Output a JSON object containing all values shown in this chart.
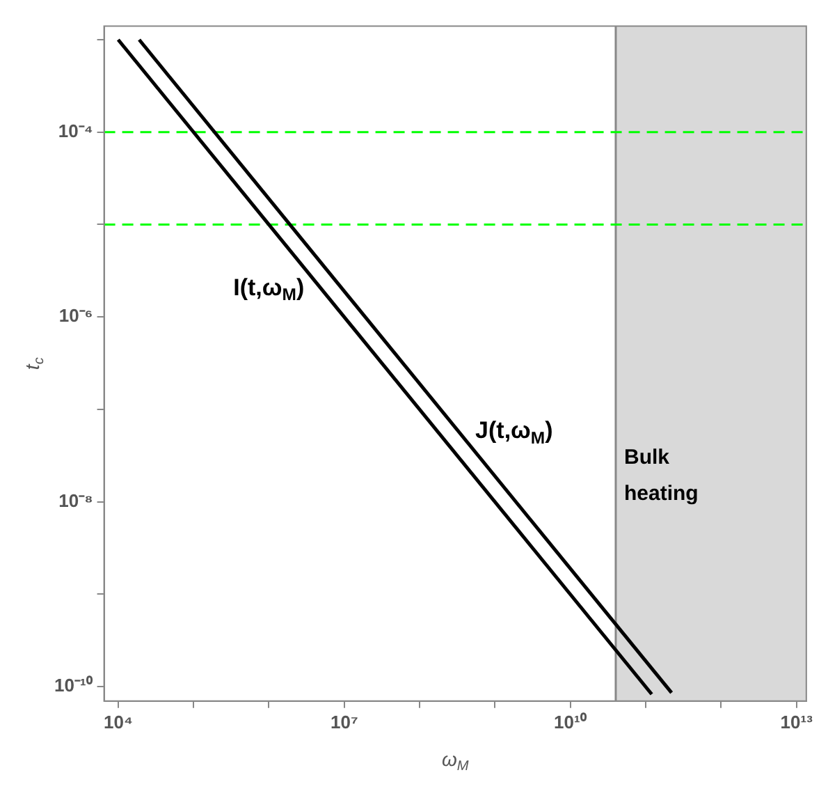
{
  "chart_data": {
    "type": "line",
    "xlabel": "ω$_{M}$",
    "ylabel": "t$_{c}$",
    "log": "xy",
    "xlim": [
      6500.0,
      13500000000000.0
    ],
    "ylim": [
      7e-11,
      0.0014
    ],
    "xticks": [
      {
        "value": 10000.0,
        "label": "10⁴"
      },
      {
        "value": 100000.0,
        "label": null
      },
      {
        "value": 1000000.0,
        "label": null
      },
      {
        "value": 10000000.0,
        "label": "10⁷"
      },
      {
        "value": 100000000.0,
        "label": null
      },
      {
        "value": 1000000000.0,
        "label": null
      },
      {
        "value": 10000000000.0,
        "label": "10¹⁰"
      },
      {
        "value": 100000000000.0,
        "label": null
      },
      {
        "value": 1000000000000.0,
        "label": null
      },
      {
        "value": 10000000000000.0,
        "label": "10¹³"
      }
    ],
    "yticks": [
      {
        "value": 1e-10,
        "label": "10⁻¹⁰"
      },
      {
        "value": 1e-09,
        "label": null
      },
      {
        "value": 1e-08,
        "label": "10⁻⁸"
      },
      {
        "value": 1e-07,
        "label": null
      },
      {
        "value": 1e-06,
        "label": "10⁻⁶"
      },
      {
        "value": 1e-05,
        "label": null
      },
      {
        "value": 0.0001,
        "label": "10⁻⁴"
      },
      {
        "value": 0.001,
        "label": null
      }
    ],
    "grid": false,
    "legend": false,
    "marker": "none",
    "line_style": "solid",
    "series": [
      {
        "name": "I(t,ω$_{M}$)",
        "color": "#000000",
        "x": [
          10000.0,
          120000000000.0
        ],
        "values": [
          0.001,
          8.3e-11
        ]
      },
      {
        "name": "J(t,ω$_{M}$)",
        "color": "#000000",
        "x": [
          19000.0,
          220000000000.0
        ],
        "values": [
          0.001,
          8.6e-11
        ]
      }
    ],
    "ref_lines": [
      {
        "axis": "x",
        "value": 40000000000.0,
        "color": "#888888",
        "line_style": "solid"
      },
      {
        "axis": "y",
        "value": 0.0001,
        "color": "#00ff00",
        "line_style": "dashed"
      },
      {
        "axis": "y",
        "value": 1e-05,
        "color": "#00ff00",
        "line_style": "dashed"
      }
    ],
    "bands": [
      {
        "axis": "x",
        "from": 40000000000.0,
        "to": 13500000000000.0,
        "label": "Bulk heating",
        "color": "#d9d9d9"
      }
    ]
  }
}
